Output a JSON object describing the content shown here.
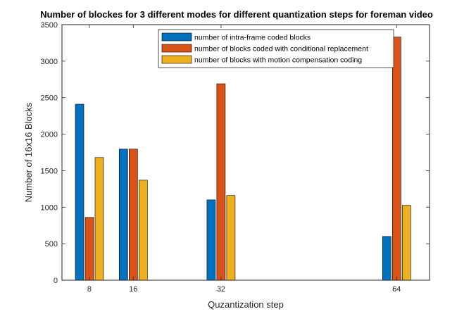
{
  "chart_data": {
    "type": "bar",
    "title": "Number of blockes for 3 different modes for different quantization steps for foreman video",
    "xlabel": "Quzantization step",
    "ylabel": "Number of 16x16 Blocks",
    "x": [
      8,
      16,
      32,
      64
    ],
    "x_tick_labels": [
      "8",
      "16",
      "32",
      "64"
    ],
    "xlim": [
      3,
      70
    ],
    "ylim": [
      0,
      3500
    ],
    "y_ticks": [
      0,
      500,
      1000,
      1500,
      2000,
      2500,
      3000,
      3500
    ],
    "y_tick_labels": [
      "0",
      "500",
      "1000",
      "1500",
      "2000",
      "2500",
      "3000",
      "3500"
    ],
    "grid": false,
    "legend_position": "top-right",
    "series": [
      {
        "name": "number of intra-frame coded blocks",
        "color": "#0072BD",
        "values": [
          2410,
          1795,
          1100,
          600
        ]
      },
      {
        "name": "number of blocks coded with conditional replacement",
        "color": "#D95319",
        "values": [
          860,
          1795,
          2690,
          3330
        ]
      },
      {
        "name": "number of blocks with motion compensation coding",
        "color": "#EDB120",
        "values": [
          1680,
          1370,
          1160,
          1025
        ]
      }
    ]
  }
}
